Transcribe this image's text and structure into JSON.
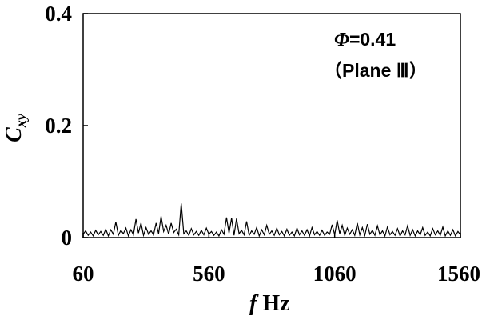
{
  "chart_data": {
    "type": "line",
    "xlabel": {
      "symbol": "f",
      "unit": " Hz"
    },
    "ylabel": {
      "symbol": "C",
      "subscript": "xy"
    },
    "xlim": [
      60,
      1560
    ],
    "ylim": [
      0,
      0.4
    ],
    "x_ticks": [
      "60",
      "560",
      "1060",
      "1560"
    ],
    "y_ticks": [
      "0",
      "0.2",
      "0.4"
    ],
    "annotation": {
      "line1_symbol": "Φ",
      "line1_value": "=0.41",
      "line2": "（Plane Ⅲ）"
    },
    "grid": false,
    "legend": "none",
    "series": [
      {
        "x": [
          60,
          70,
          80,
          90,
          100,
          110,
          120,
          130,
          140,
          150,
          160,
          170,
          180,
          190,
          200,
          210,
          220,
          230,
          240,
          250,
          260,
          270,
          280,
          290,
          300,
          310,
          320,
          330,
          340,
          350,
          360,
          370,
          380,
          390,
          400,
          410,
          420,
          430,
          440,
          450,
          460,
          470,
          480,
          490,
          500,
          510,
          520,
          530,
          540,
          550,
          560,
          570,
          580,
          590,
          600,
          610,
          620,
          630,
          640,
          650,
          660,
          670,
          680,
          690,
          700,
          710,
          720,
          730,
          740,
          750,
          760,
          770,
          780,
          790,
          800,
          810,
          820,
          830,
          840,
          850,
          860,
          870,
          880,
          890,
          900,
          910,
          920,
          930,
          940,
          950,
          960,
          970,
          980,
          990,
          1000,
          1010,
          1020,
          1030,
          1040,
          1050,
          1060,
          1070,
          1080,
          1090,
          1100,
          1110,
          1120,
          1130,
          1140,
          1150,
          1160,
          1170,
          1180,
          1190,
          1200,
          1210,
          1220,
          1230,
          1240,
          1250,
          1260,
          1270,
          1280,
          1290,
          1300,
          1310,
          1320,
          1330,
          1340,
          1350,
          1360,
          1370,
          1380,
          1390,
          1400,
          1410,
          1420,
          1430,
          1440,
          1450,
          1460,
          1470,
          1480,
          1490,
          1500,
          1510,
          1520,
          1530,
          1540,
          1550,
          1560
        ],
        "values": [
          0.006,
          0.012,
          0.004,
          0.01,
          0.003,
          0.013,
          0.005,
          0.011,
          0.004,
          0.015,
          0.003,
          0.014,
          0.006,
          0.028,
          0.004,
          0.013,
          0.007,
          0.017,
          0.003,
          0.014,
          0.005,
          0.033,
          0.008,
          0.026,
          0.004,
          0.018,
          0.006,
          0.012,
          0.005,
          0.026,
          0.007,
          0.038,
          0.011,
          0.022,
          0.006,
          0.026,
          0.009,
          0.015,
          0.005,
          0.061,
          0.007,
          0.012,
          0.004,
          0.016,
          0.005,
          0.011,
          0.004,
          0.013,
          0.005,
          0.017,
          0.006,
          0.011,
          0.004,
          0.01,
          0.003,
          0.014,
          0.006,
          0.036,
          0.008,
          0.035,
          0.004,
          0.034,
          0.007,
          0.013,
          0.005,
          0.029,
          0.004,
          0.012,
          0.006,
          0.018,
          0.003,
          0.014,
          0.005,
          0.022,
          0.006,
          0.012,
          0.004,
          0.017,
          0.005,
          0.011,
          0.003,
          0.015,
          0.004,
          0.01,
          0.003,
          0.017,
          0.005,
          0.012,
          0.004,
          0.014,
          0.003,
          0.018,
          0.005,
          0.011,
          0.004,
          0.013,
          0.004,
          0.01,
          0.006,
          0.023,
          0.005,
          0.031,
          0.007,
          0.022,
          0.004,
          0.017,
          0.006,
          0.014,
          0.004,
          0.026,
          0.005,
          0.018,
          0.004,
          0.024,
          0.006,
          0.013,
          0.004,
          0.021,
          0.005,
          0.012,
          0.003,
          0.019,
          0.005,
          0.011,
          0.004,
          0.016,
          0.003,
          0.012,
          0.005,
          0.021,
          0.004,
          0.014,
          0.003,
          0.012,
          0.005,
          0.018,
          0.004,
          0.01,
          0.003,
          0.016,
          0.005,
          0.012,
          0.004,
          0.019,
          0.003,
          0.012,
          0.004,
          0.014,
          0.003,
          0.011,
          0.005
        ]
      }
    ]
  }
}
